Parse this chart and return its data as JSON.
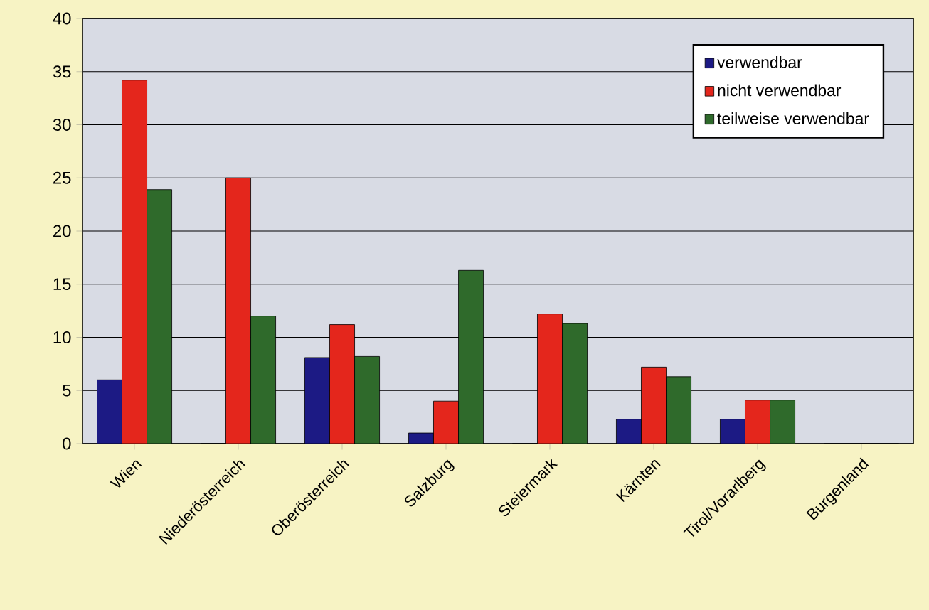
{
  "chart_data": {
    "type": "bar",
    "categories": [
      "Wien",
      "Niederösterreich",
      "Oberösterreich",
      "Salzburg",
      "Steiermark",
      "Kärnten",
      "Tirol/Vorarlberg",
      "Burgenland"
    ],
    "series": [
      {
        "name": "verwendbar",
        "color": "#1c1a84",
        "values": [
          6,
          0,
          8.1,
          1,
          0,
          2.3,
          2.3,
          0
        ]
      },
      {
        "name": "nicht verwendbar",
        "color": "#e4261c",
        "values": [
          34.2,
          25,
          11.2,
          4,
          12.2,
          7.2,
          4.1,
          0
        ]
      },
      {
        "name": "teilweise verwendbar",
        "color": "#2f6a2b",
        "values": [
          23.9,
          12,
          8.2,
          16.3,
          11.3,
          6.3,
          4.1,
          0
        ]
      }
    ],
    "ylim": [
      0,
      40
    ],
    "yticks": [
      0,
      5,
      10,
      15,
      20,
      25,
      30,
      35,
      40
    ],
    "grid": "y",
    "legend": "top right"
  }
}
